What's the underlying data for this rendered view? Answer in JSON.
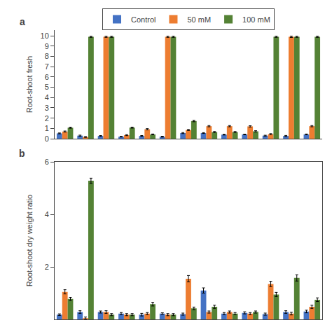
{
  "chart_data": [
    {
      "type": "bar",
      "ylabel": "Root-shoot fresh",
      "annotations": [
        "a"
      ],
      "categories": [
        null,
        null,
        null,
        null,
        null,
        null,
        null,
        null,
        null,
        null,
        null,
        null,
        null
      ],
      "series": [
        {
          "color": "#4472C4",
          "values": [
            0.52,
            0.3,
            0.27,
            0.2,
            0.27,
            0.2,
            0.55,
            0.55,
            0.4,
            0.42,
            0.3,
            0.27,
            0.42
          ],
          "errors": [
            0.04,
            0.05,
            0.04,
            0.03,
            0.04,
            0.04,
            0.05,
            0.04,
            0.04,
            0.03,
            0.04,
            0.05,
            0.04
          ]
        },
        {
          "color": "#ED7D31",
          "values": [
            0.7,
            0.17,
            9.9,
            0.35,
            0.92,
            9.9,
            0.85,
            1.22,
            1.22,
            1.2,
            0.45,
            9.9,
            1.22
          ],
          "errors": [
            0.05,
            0.04,
            0.05,
            0.05,
            0.06,
            0.05,
            0.05,
            0.06,
            0.06,
            0.06,
            0.04,
            0.06,
            0.06
          ]
        },
        {
          "color": "#548235",
          "values": [
            1.07,
            9.9,
            9.9,
            1.08,
            0.42,
            9.9,
            1.72,
            0.65,
            0.65,
            0.72,
            9.9,
            9.9,
            9.9
          ],
          "errors": [
            0.05,
            0.05,
            0.05,
            0.05,
            0.04,
            0.05,
            0.07,
            0.05,
            0.05,
            0.06,
            0.05,
            0.05,
            0.05
          ]
        }
      ],
      "ylim": [
        0,
        10.55
      ],
      "yticks": [
        0,
        1,
        2,
        3,
        4,
        5,
        6,
        7,
        8,
        9,
        10
      ],
      "grid": false,
      "tick_labels": "y"
    },
    {
      "type": "bar",
      "ylabel": "Root-shoot dry weight ratio",
      "annotations": [
        "b"
      ],
      "categories": [
        null,
        null,
        null,
        null,
        null,
        null,
        null,
        null,
        null,
        null,
        null,
        null,
        null
      ],
      "series": [
        {
          "name": "Control",
          "color": "#4472C4",
          "values": [
            0.18,
            0.28,
            0.28,
            0.22,
            0.18,
            0.22,
            0.2,
            1.1,
            0.22,
            0.25,
            0.2,
            0.28,
            0.3
          ],
          "errors": [
            0.03,
            0.05,
            0.04,
            0.04,
            0.05,
            0.03,
            0.04,
            0.1,
            0.04,
            0.04,
            0.04,
            0.05,
            0.05
          ]
        },
        {
          "name": "50 mM",
          "color": "#ED7D31",
          "values": [
            1.05,
            0.05,
            0.28,
            0.18,
            0.22,
            0.18,
            1.55,
            0.28,
            0.28,
            0.22,
            1.35,
            0.22,
            0.48
          ],
          "errors": [
            0.08,
            0.04,
            0.05,
            0.04,
            0.04,
            0.04,
            0.12,
            0.04,
            0.04,
            0.04,
            0.1,
            0.05,
            0.06
          ]
        },
        {
          "name": "100 mM",
          "color": "#548235",
          "values": [
            0.78,
            5.28,
            0.18,
            0.18,
            0.58,
            0.18,
            0.42,
            0.48,
            0.22,
            0.28,
            0.95,
            1.58,
            0.75
          ],
          "errors": [
            0.06,
            0.1,
            0.04,
            0.04,
            0.07,
            0.04,
            0.05,
            0.06,
            0.04,
            0.04,
            0.08,
            0.12,
            0.07
          ]
        }
      ],
      "ylim": [
        0,
        6
      ],
      "yticks": [
        2,
        4,
        6
      ],
      "grid": false,
      "tick_labels": "y",
      "legend": "top"
    }
  ]
}
